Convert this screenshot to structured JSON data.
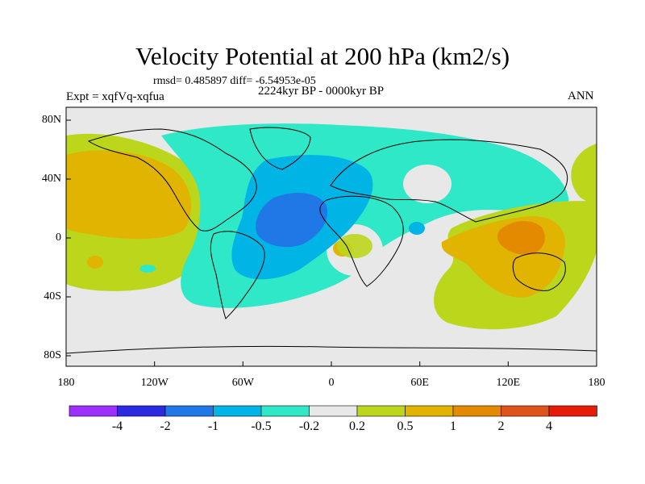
{
  "title": "Velocity Potential at 200 hPa (km2/s)",
  "stats": "rmsd= 0.485897 diff= -6.54953e-05",
  "expt": "Expt = xqfVq-xqfua",
  "period": "2224kyr BP - 0000kyr BP",
  "season": "ANN",
  "lat_ticks": [
    "80N",
    "40N",
    "0",
    "40S",
    "80S"
  ],
  "lon_ticks": [
    "180",
    "120W",
    "60W",
    "0",
    "60E",
    "120E",
    "180"
  ],
  "colorbar": {
    "colors": [
      "#9b30ff",
      "#2a2ae0",
      "#1f78e6",
      "#00b4e6",
      "#2ee8c8",
      "#e8e8e8",
      "#bcd61c",
      "#e0b400",
      "#e38a00",
      "#e0521c",
      "#e81a0a"
    ],
    "labels": [
      "-4",
      "-2",
      "-1",
      "-0.5",
      "-0.2",
      "0.2",
      "0.5",
      "1",
      "2",
      "4"
    ]
  }
}
